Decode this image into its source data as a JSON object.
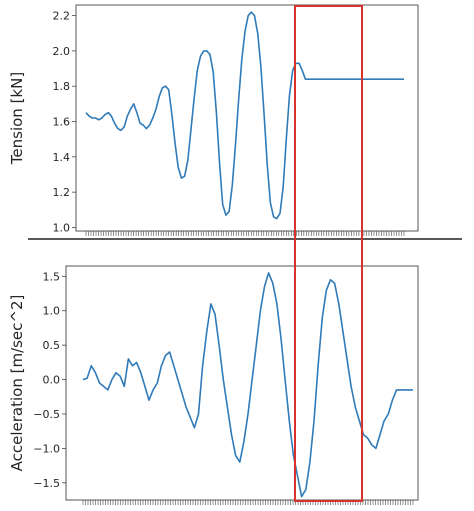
{
  "chart_data": [
    {
      "type": "line",
      "ylabel": "Tension [kN]",
      "ylim": [
        0.98,
        2.26
      ],
      "yticks": [
        1.0,
        1.2,
        1.4,
        1.6,
        1.8,
        2.0,
        2.2
      ],
      "ytick_labels": [
        "1.0",
        "1.2",
        "1.4",
        "1.6",
        "1.8",
        "2.0",
        "2.2"
      ],
      "x_tick_labels_visible": false,
      "color": "#2f7ab8",
      "x": [
        0,
        1,
        2,
        3,
        4,
        5,
        6,
        7,
        8,
        9,
        10,
        11,
        12,
        13,
        14,
        15,
        16,
        17,
        18,
        19,
        20,
        21,
        22,
        23,
        24,
        25,
        26,
        27,
        28,
        29,
        30,
        31,
        32,
        33,
        34,
        35,
        36,
        37,
        38,
        39,
        40,
        41,
        42,
        43,
        44,
        45,
        46,
        47,
        48,
        49,
        50,
        51,
        52,
        53,
        54,
        55,
        56,
        57,
        58,
        59,
        60,
        61,
        62,
        63,
        64,
        65,
        66,
        67,
        68,
        69,
        70,
        71,
        72,
        73,
        74,
        75,
        76,
        77,
        78,
        79,
        80,
        81,
        82,
        83,
        84,
        85,
        86,
        87,
        88,
        89,
        90,
        91,
        92,
        93,
        94,
        95,
        96,
        97,
        98,
        99,
        100
      ],
      "values": [
        1.65,
        1.63,
        1.62,
        1.62,
        1.61,
        1.62,
        1.64,
        1.65,
        1.63,
        1.59,
        1.56,
        1.55,
        1.57,
        1.63,
        1.67,
        1.7,
        1.65,
        1.59,
        1.58,
        1.56,
        1.58,
        1.62,
        1.67,
        1.74,
        1.79,
        1.8,
        1.78,
        1.64,
        1.48,
        1.34,
        1.28,
        1.29,
        1.38,
        1.55,
        1.73,
        1.89,
        1.97,
        2.0,
        2.0,
        1.98,
        1.88,
        1.65,
        1.36,
        1.13,
        1.07,
        1.09,
        1.24,
        1.47,
        1.72,
        1.95,
        2.11,
        2.2,
        2.22,
        2.2,
        2.1,
        1.91,
        1.64,
        1.35,
        1.14,
        1.06,
        1.05,
        1.08,
        1.23,
        1.5,
        1.75,
        1.89,
        1.93,
        1.93,
        1.89,
        1.84,
        1.84,
        1.84,
        1.84,
        1.84,
        1.84,
        1.84,
        1.84,
        1.84,
        1.84,
        1.84,
        1.84,
        1.84,
        1.84,
        1.84,
        1.84,
        1.84,
        1.84,
        1.84,
        1.84,
        1.84,
        1.84,
        1.84,
        1.84,
        1.84,
        1.84,
        1.84,
        1.84,
        1.84,
        1.84,
        1.84,
        1.84
      ]
    },
    {
      "type": "line",
      "ylabel": "Acceleration [m/sec^2]",
      "ylim": [
        -1.75,
        1.65
      ],
      "yticks": [
        -1.5,
        -1.0,
        -0.5,
        0.0,
        0.5,
        1.0,
        1.5
      ],
      "ytick_labels": [
        "−1.5",
        "−1.0",
        "−0.5",
        "0.0",
        "0.5",
        "1.0",
        "1.5"
      ],
      "x_tick_labels_visible": false,
      "color": "#2f7ab8",
      "x": [
        0,
        1,
        2,
        3,
        4,
        5,
        6,
        7,
        8,
        9,
        10,
        11,
        12,
        13,
        14,
        15,
        16,
        17,
        18,
        19,
        20,
        21,
        22,
        23,
        24,
        25,
        26,
        27,
        28,
        29,
        30,
        31,
        32,
        33,
        34,
        35,
        36,
        37,
        38,
        39,
        40,
        41,
        42,
        43,
        44,
        45,
        46,
        47,
        48,
        49,
        50,
        51,
        52,
        53,
        54,
        55,
        56,
        57,
        58,
        59,
        60,
        61,
        62,
        63,
        64,
        65,
        66,
        67,
        68,
        69,
        70,
        71,
        72,
        73,
        74,
        75,
        76,
        77,
        78,
        79,
        80
      ],
      "values": [
        0.0,
        0.02,
        0.2,
        0.1,
        -0.05,
        -0.1,
        -0.15,
        0.0,
        0.1,
        0.05,
        -0.1,
        0.3,
        0.2,
        0.25,
        0.1,
        -0.1,
        -0.3,
        -0.15,
        -0.05,
        0.2,
        0.35,
        0.4,
        0.2,
        0.0,
        -0.2,
        -0.4,
        -0.55,
        -0.7,
        -0.5,
        0.2,
        0.7,
        1.1,
        0.95,
        0.5,
        0.0,
        -0.4,
        -0.8,
        -1.1,
        -1.2,
        -0.9,
        -0.5,
        0.0,
        0.5,
        1.0,
        1.35,
        1.55,
        1.4,
        1.1,
        0.6,
        0.0,
        -0.6,
        -1.1,
        -1.4,
        -1.7,
        -1.6,
        -1.2,
        -0.6,
        0.2,
        0.9,
        1.3,
        1.45,
        1.4,
        1.1,
        0.7,
        0.3,
        -0.1,
        -0.4,
        -0.6,
        -0.8,
        -0.85,
        -0.95,
        -1.0,
        -0.8,
        -0.6,
        -0.5,
        -0.3,
        -0.15,
        -0.15,
        -0.15,
        -0.15,
        -0.15
      ]
    }
  ],
  "highlight_box": {
    "color": "#d9312b",
    "x_range_top": [
      48,
      64
    ],
    "x_range_bottom": [
      40,
      60
    ]
  }
}
